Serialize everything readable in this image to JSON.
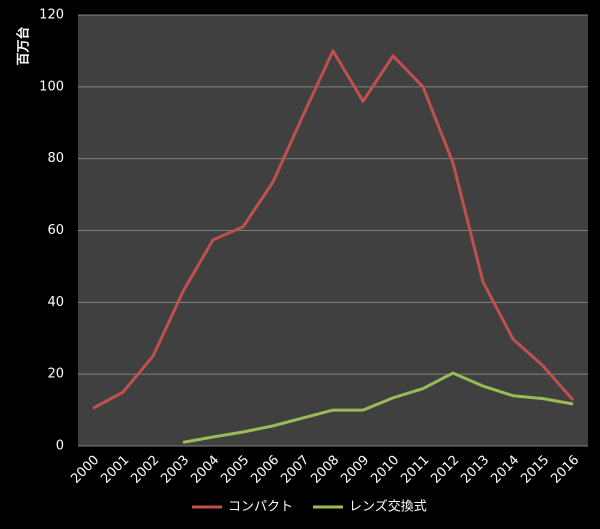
{
  "chart_data": {
    "type": "line",
    "y_label": "百万台",
    "categories": [
      "2000",
      "2001",
      "2002",
      "2003",
      "2004",
      "2005",
      "2006",
      "2007",
      "2008",
      "2009",
      "2010",
      "2011",
      "2012",
      "2013",
      "2014",
      "2015",
      "2016"
    ],
    "series": [
      {
        "name": "コンパクト",
        "color": "#c0504d",
        "values": [
          10.5,
          15,
          25,
          43,
          57.4,
          61,
          73.5,
          92,
          110,
          96,
          108.6,
          100,
          78.8,
          45.7,
          29.8,
          22.3,
          12.8
        ]
      },
      {
        "name": "レンズ交換式",
        "color": "#9bbb59",
        "values": [
          null,
          null,
          null,
          1,
          2.5,
          3.9,
          5.6,
          7.8,
          10,
          10,
          13.4,
          16,
          20.3,
          16.7,
          14,
          13.2,
          11.7
        ]
      }
    ],
    "ylim": [
      0,
      120
    ],
    "yticks": [
      0,
      20,
      40,
      60,
      80,
      100,
      120
    ],
    "grid": true,
    "legend": "bottom"
  }
}
